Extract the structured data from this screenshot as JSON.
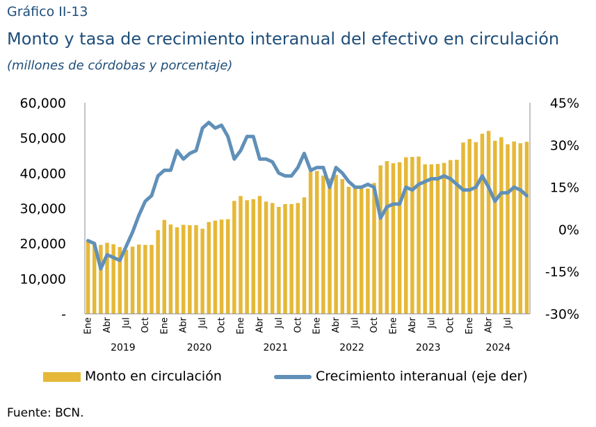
{
  "header": {
    "label": "Gráfico II-13",
    "title": "Monto y tasa de crecimiento interanual del efectivo en circulación",
    "subtitle": "(millones de córdobas y porcentaje)"
  },
  "source": "Fuente: BCN.",
  "colors": {
    "bars": "#e5b838",
    "line": "#6090b8"
  },
  "chart_data": {
    "type": "bar+line",
    "y_left": {
      "ticks": [
        "-",
        "10,000",
        "20,000",
        "30,000",
        "40,000",
        "50,000",
        "60,000"
      ],
      "min": 0,
      "max": 60000
    },
    "y_right": {
      "ticks": [
        "-30%",
        "-15%",
        "0%",
        "15%",
        "30%",
        "45%"
      ],
      "min": -30,
      "max": 45
    },
    "x_tick_labels": [
      "Ene",
      "Abr",
      "Jul",
      "Oct",
      "Ene",
      "Abr",
      "Jul",
      "Oct",
      "Ene",
      "Abr",
      "Jul",
      "Oct",
      "Ene",
      "Abr",
      "Jul",
      "Oct",
      "Ene",
      "Abr",
      "Jul",
      "Oct",
      "Ene",
      "Abr",
      "Jul"
    ],
    "x_tick_months": [
      0,
      3,
      6,
      9,
      12,
      15,
      18,
      21,
      24,
      27,
      30,
      33,
      36,
      39,
      42,
      45,
      48,
      51,
      54,
      57,
      60,
      63,
      66
    ],
    "years": [
      "2019",
      "2020",
      "2021",
      "2022",
      "2023",
      "2024"
    ],
    "grid": false,
    "legend_position": "bottom",
    "series": [
      {
        "name": "Monto en circulación",
        "type": "bar",
        "axis": "left",
        "values": [
          20800,
          19900,
          19600,
          20200,
          19800,
          19000,
          18200,
          19100,
          19700,
          19600,
          19600,
          23800,
          26700,
          25400,
          24600,
          25300,
          25200,
          25200,
          24200,
          26100,
          26500,
          26800,
          26900,
          32100,
          33500,
          32300,
          32600,
          33500,
          31900,
          31500,
          30400,
          31200,
          31200,
          31500,
          33100,
          40500,
          40600,
          39300,
          38500,
          39500,
          38300,
          36100,
          35700,
          35700,
          35600,
          37200,
          42200,
          43400,
          42800,
          43100,
          44500,
          44600,
          44700,
          42500,
          42500,
          42600,
          42900,
          43700,
          43800,
          48700,
          49700,
          48800,
          51200,
          52000,
          49200,
          50200,
          48200,
          49000,
          48500,
          48900
        ]
      },
      {
        "name": "Crecimiento interanual (eje der)",
        "type": "line",
        "axis": "right",
        "values": [
          -4,
          -5,
          -14,
          -9,
          -10,
          -11,
          -6,
          -1,
          5,
          10,
          12,
          19,
          21,
          21,
          28,
          25,
          27,
          28,
          36,
          38,
          36,
          37,
          33,
          25,
          28,
          33,
          33,
          25,
          25,
          24,
          20,
          19,
          19,
          22,
          27,
          21,
          22,
          22,
          15,
          22,
          20,
          17,
          15,
          15,
          16,
          15,
          4,
          8,
          9,
          9,
          15,
          14,
          16,
          17,
          18,
          18,
          19,
          18,
          16,
          14,
          14,
          15,
          19,
          15,
          10,
          13,
          13,
          15,
          14,
          12
        ]
      }
    ]
  }
}
